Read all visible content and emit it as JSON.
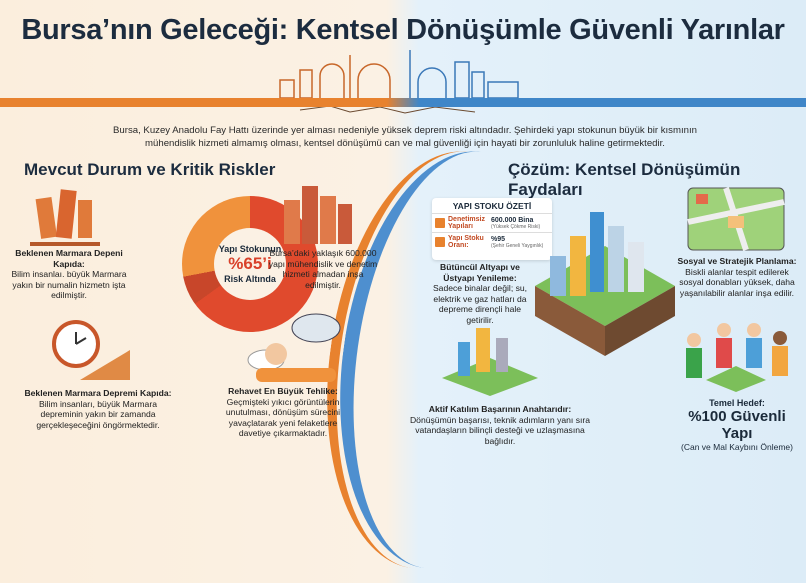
{
  "title": "Bursa’nın Geleceği: Kentsel Dönüşümle Güvenli Yarınlar",
  "intro": "Bursa, Kuzey Anadolu Fay Hattı üzerinde yer alması nedeniyle yüksek deprem riski altındadır. Şehirdeki yapı stokunun büyük bir kısmının mühendislik hizmeti almamış olması, kentsel dönüşümü can ve mal güvenliği için hayati bir zorunluluk haline getirmektedir.",
  "colors": {
    "risk": "#e8822e",
    "solution": "#3f86c8",
    "danger": "#e04a2d"
  },
  "left": {
    "heading": "Mevcut Durum ve Kritik Riskler",
    "donut": {
      "line1": "Yapı Stokunun",
      "value": "%65’i",
      "line3": "Risk Altında",
      "percent": 65
    },
    "items": [
      {
        "title": "Beklenen Marmara Depeni Kapıda:",
        "text": "Bilim insanlaı. büyük Marmara yakın bir numalin hizmetn işta edilmiştir.",
        "icon": "collapsed-building-icon"
      },
      {
        "title": "",
        "text": "Bursa’daki yaklaşık 600.000 yapı mühendislik ve denetim hizmeti almadan inşa edilmiştir.",
        "icon": "damaged-buildings-icon"
      },
      {
        "title": "Beklenen Marmara Depremi Kapıda:",
        "text": "Bilim insanları, büyük Marmara depreminin yakın bir zamanda gerçekleşeceğini öngörmektedir.",
        "icon": "clock-crack-icon"
      },
      {
        "title": "Rehavet En Büyük Tehlike:",
        "text": "Geçmişteki yıkıcı görüntülerin unutulması, dönüşüm sürecini yavaçlatarak yeni felaketlere davetiye çıkarmaktadır.",
        "icon": "sleeping-person-icon"
      }
    ]
  },
  "right": {
    "heading": "Çözüm: Kentsel Dönüşümün Faydaları",
    "summary": {
      "title": "YAPI STOKU ÖZETİ",
      "rows": [
        {
          "label": "Denetimsiz Yapıları",
          "value": "600.000 Bina",
          "note": "(Yüksek Çökme Riski)"
        },
        {
          "label": "Yapı Stoku Oranı:",
          "value": "%95",
          "note": "(Şehir Geneli Yaygınlık)"
        }
      ]
    },
    "items": [
      {
        "title": "Bütüncül Altyapı ve Üstyapı Yenileme:",
        "text": "Sadece binalar değil; su, elektrik ve gaz hatları da depreme dirençli hale getirilir.",
        "icon": "infrastructure-icon"
      },
      {
        "title": "Sosyal ve Stratejik Planlama:",
        "text": "Biskli alanlar tespit edilerek sosyal donabları yüksek, daha yaşanılabilir alanlar inşa edilir.",
        "icon": "city-plan-icon"
      },
      {
        "title": "Aktif Katılım Başarının Anahtarıdır:",
        "text": "Dönüşümün başarısı, teknik adımların yanı sıra vatandaşların bilinçli desteği ve uzlaşmasına bağlıdır.",
        "icon": "neighborhood-icon"
      }
    ],
    "goal": {
      "label": "Temel Hedef:",
      "value": "%100 Güvenli Yapı",
      "note": "(Can ve Mal Kaybını Önleme)"
    }
  }
}
